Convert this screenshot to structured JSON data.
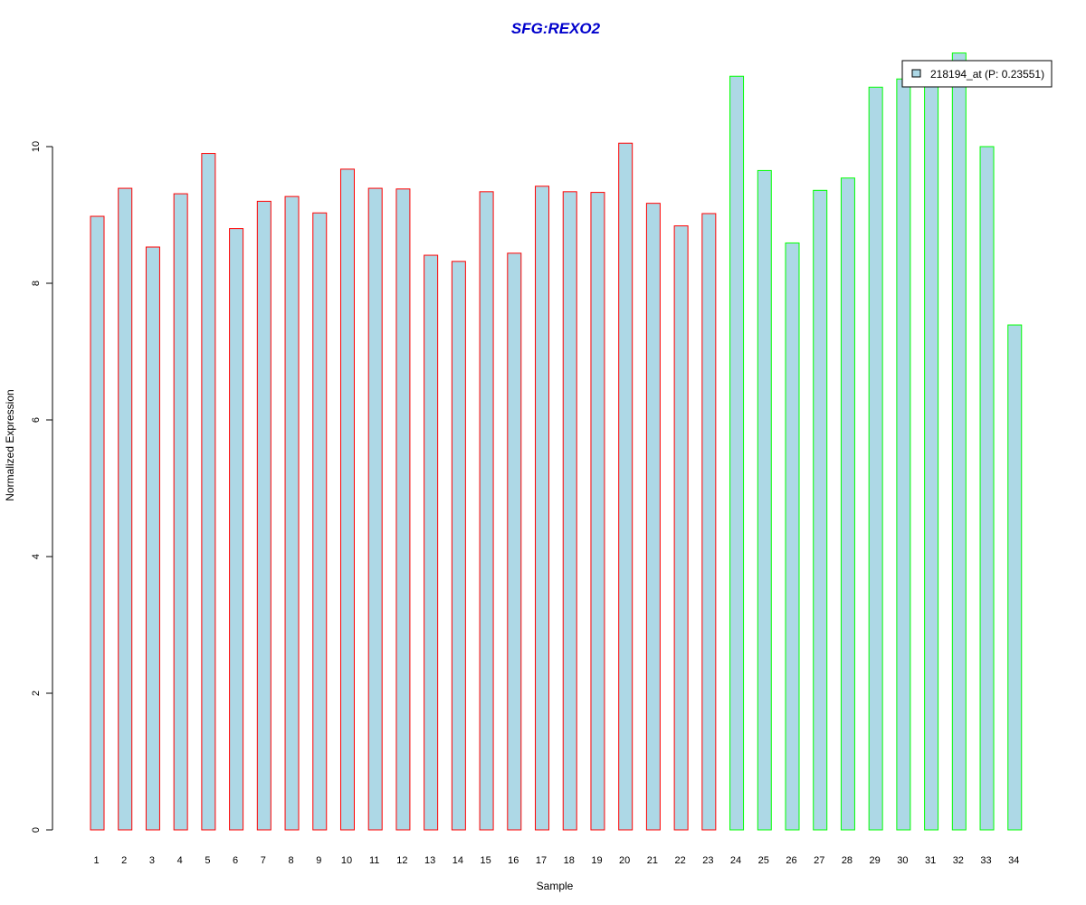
{
  "chart_data": {
    "type": "bar",
    "title": "SFG:REXO2",
    "xlabel": "Sample",
    "ylabel": "Normalized Expression",
    "ylim": [
      0,
      11.4
    ],
    "y_ticks": [
      "0",
      "2",
      "4",
      "6",
      "8",
      "10"
    ],
    "categories": [
      "1",
      "2",
      "3",
      "4",
      "5",
      "6",
      "7",
      "8",
      "9",
      "10",
      "11",
      "12",
      "13",
      "14",
      "15",
      "16",
      "17",
      "18",
      "19",
      "20",
      "21",
      "22",
      "23",
      "24",
      "25",
      "26",
      "27",
      "28",
      "29",
      "30",
      "31",
      "32",
      "33",
      "34"
    ],
    "values": [
      8.98,
      9.39,
      8.53,
      9.31,
      9.9,
      8.8,
      9.2,
      9.27,
      9.03,
      9.67,
      9.39,
      9.38,
      8.41,
      8.32,
      9.34,
      8.44,
      9.42,
      9.34,
      9.33,
      10.05,
      9.17,
      8.84,
      9.02,
      11.03,
      9.65,
      8.59,
      9.36,
      9.54,
      10.87,
      10.99,
      11.02,
      11.37,
      10.0,
      7.39
    ],
    "groups": [
      "red",
      "red",
      "red",
      "red",
      "red",
      "red",
      "red",
      "red",
      "red",
      "red",
      "red",
      "red",
      "red",
      "red",
      "red",
      "red",
      "red",
      "red",
      "red",
      "red",
      "red",
      "red",
      "red",
      "green",
      "green",
      "green",
      "green",
      "green",
      "green",
      "green",
      "green",
      "green",
      "green",
      "green"
    ],
    "series": [
      {
        "name": "218194_at (P: 0.23551)"
      }
    ],
    "legend": "top-right",
    "grid": false,
    "colors": {
      "bar_fill": "#ADD8E6",
      "red": "#FF0000",
      "green": "#00FF00",
      "title": "#0000CC"
    }
  }
}
